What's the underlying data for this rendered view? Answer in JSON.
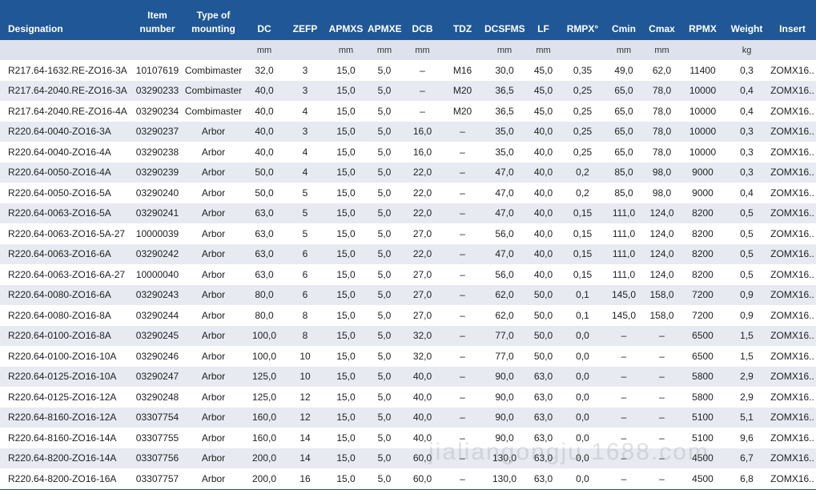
{
  "table": {
    "columns": [
      {
        "name": "Designation"
      },
      {
        "name": "Item number"
      },
      {
        "name": "Type of mounting"
      },
      {
        "name": "DC",
        "unit": "mm"
      },
      {
        "name": "ZEFP"
      },
      {
        "name": "APMXS",
        "unit": "mm"
      },
      {
        "name": "APMXE",
        "unit": "mm"
      },
      {
        "name": "DCB",
        "unit": "mm"
      },
      {
        "name": "TDZ"
      },
      {
        "name": "DCSFMS",
        "unit": "mm"
      },
      {
        "name": "LF",
        "unit": "mm"
      },
      {
        "name": "RMPX°"
      },
      {
        "name": "Cmin",
        "unit": "mm"
      },
      {
        "name": "Cmax",
        "unit": "mm"
      },
      {
        "name": "RPMX"
      },
      {
        "name": "Weight",
        "unit": "kg"
      },
      {
        "name": "Insert"
      }
    ],
    "rows": [
      [
        "R217.64-1632.RE-ZO16-3A",
        "10107619",
        "Combimaster",
        "32,0",
        "3",
        "15,0",
        "5,0",
        "–",
        "M16",
        "30,0",
        "45,0",
        "0,35",
        "49,0",
        "62,0",
        "11400",
        "0,3",
        "ZOMX16.."
      ],
      [
        "R217.64-2040.RE-ZO16-3A",
        "03290233",
        "Combimaster",
        "40,0",
        "3",
        "15,0",
        "5,0",
        "–",
        "M20",
        "36,5",
        "45,0",
        "0,25",
        "65,0",
        "78,0",
        "10000",
        "0,4",
        "ZOMX16.."
      ],
      [
        "R217.64-2040.RE-ZO16-4A",
        "03290234",
        "Combimaster",
        "40,0",
        "4",
        "15,0",
        "5,0",
        "–",
        "M20",
        "36,5",
        "45,0",
        "0,25",
        "65,0",
        "78,0",
        "10000",
        "0,4",
        "ZOMX16.."
      ],
      [
        "R220.64-0040-ZO16-3A",
        "03290237",
        "Arbor",
        "40,0",
        "3",
        "15,0",
        "5,0",
        "16,0",
        "–",
        "35,0",
        "40,0",
        "0,25",
        "65,0",
        "78,0",
        "10000",
        "0,3",
        "ZOMX16.."
      ],
      [
        "R220.64-0040-ZO16-4A",
        "03290238",
        "Arbor",
        "40,0",
        "4",
        "15,0",
        "5,0",
        "16,0",
        "–",
        "35,0",
        "40,0",
        "0,25",
        "65,0",
        "78,0",
        "10000",
        "0,3",
        "ZOMX16.."
      ],
      [
        "R220.64-0050-ZO16-4A",
        "03290239",
        "Arbor",
        "50,0",
        "4",
        "15,0",
        "5,0",
        "22,0",
        "–",
        "47,0",
        "40,0",
        "0,2",
        "85,0",
        "98,0",
        "9000",
        "0,3",
        "ZOMX16.."
      ],
      [
        "R220.64-0050-ZO16-5A",
        "03290240",
        "Arbor",
        "50,0",
        "5",
        "15,0",
        "5,0",
        "22,0",
        "–",
        "47,0",
        "40,0",
        "0,2",
        "85,0",
        "98,0",
        "9000",
        "0,4",
        "ZOMX16.."
      ],
      [
        "R220.64-0063-ZO16-5A",
        "03290241",
        "Arbor",
        "63,0",
        "5",
        "15,0",
        "5,0",
        "22,0",
        "–",
        "47,0",
        "40,0",
        "0,15",
        "111,0",
        "124,0",
        "8200",
        "0,5",
        "ZOMX16.."
      ],
      [
        "R220.64-0063-ZO16-5A-27",
        "10000039",
        "Arbor",
        "63,0",
        "5",
        "15,0",
        "5,0",
        "27,0",
        "–",
        "56,0",
        "40,0",
        "0,15",
        "111,0",
        "124,0",
        "8200",
        "0,5",
        "ZOMX16.."
      ],
      [
        "R220.64-0063-ZO16-6A",
        "03290242",
        "Arbor",
        "63,0",
        "6",
        "15,0",
        "5,0",
        "22,0",
        "–",
        "47,0",
        "40,0",
        "0,15",
        "111,0",
        "124,0",
        "8200",
        "0,5",
        "ZOMX16.."
      ],
      [
        "R220.64-0063-ZO16-6A-27",
        "10000040",
        "Arbor",
        "63,0",
        "6",
        "15,0",
        "5,0",
        "27,0",
        "–",
        "56,0",
        "40,0",
        "0,15",
        "111,0",
        "124,0",
        "8200",
        "0,5",
        "ZOMX16.."
      ],
      [
        "R220.64-0080-ZO16-6A",
        "03290243",
        "Arbor",
        "80,0",
        "6",
        "15,0",
        "5,0",
        "27,0",
        "–",
        "62,0",
        "50,0",
        "0,1",
        "145,0",
        "158,0",
        "7200",
        "0,9",
        "ZOMX16.."
      ],
      [
        "R220.64-0080-ZO16-8A",
        "03290244",
        "Arbor",
        "80,0",
        "8",
        "15,0",
        "5,0",
        "27,0",
        "–",
        "62,0",
        "50,0",
        "0,1",
        "145,0",
        "158,0",
        "7200",
        "0,9",
        "ZOMX16.."
      ],
      [
        "R220.64-0100-ZO16-8A",
        "03290245",
        "Arbor",
        "100,0",
        "8",
        "15,0",
        "5,0",
        "32,0",
        "–",
        "77,0",
        "50,0",
        "0,0",
        "–",
        "–",
        "6500",
        "1,5",
        "ZOMX16.."
      ],
      [
        "R220.64-0100-ZO16-10A",
        "03290246",
        "Arbor",
        "100,0",
        "10",
        "15,0",
        "5,0",
        "32,0",
        "–",
        "77,0",
        "50,0",
        "0,0",
        "–",
        "–",
        "6500",
        "1,5",
        "ZOMX16.."
      ],
      [
        "R220.64-0125-ZO16-10A",
        "03290247",
        "Arbor",
        "125,0",
        "10",
        "15,0",
        "5,0",
        "40,0",
        "–",
        "90,0",
        "63,0",
        "0,0",
        "–",
        "–",
        "5800",
        "2,9",
        "ZOMX16.."
      ],
      [
        "R220.64-0125-ZO16-12A",
        "03290248",
        "Arbor",
        "125,0",
        "12",
        "15,0",
        "5,0",
        "40,0",
        "–",
        "90,0",
        "63,0",
        "0,0",
        "–",
        "–",
        "5800",
        "2,9",
        "ZOMX16.."
      ],
      [
        "R220.64-8160-ZO16-12A",
        "03307754",
        "Arbor",
        "160,0",
        "12",
        "15,0",
        "5,0",
        "40,0",
        "–",
        "90,0",
        "63,0",
        "0,0",
        "–",
        "–",
        "5100",
        "5,1",
        "ZOMX16.."
      ],
      [
        "R220.64-8160-ZO16-14A",
        "03307755",
        "Arbor",
        "160,0",
        "14",
        "15,0",
        "5,0",
        "40,0",
        "–",
        "90,0",
        "63,0",
        "0,0",
        "–",
        "–",
        "5100",
        "9,6",
        "ZOMX16.."
      ],
      [
        "R220.64-8200-ZO16-14A",
        "03307756",
        "Arbor",
        "200,0",
        "14",
        "15,0",
        "5,0",
        "60,0",
        "–",
        "130,0",
        "63,0",
        "0,0",
        "–",
        "–",
        "4500",
        "6,7",
        "ZOMX16.."
      ],
      [
        "R220.64-8200-ZO16-16A",
        "03307757",
        "Arbor",
        "200,0",
        "16",
        "15,0",
        "5,0",
        "60,0",
        "–",
        "130,0",
        "63,0",
        "0,0",
        "–",
        "–",
        "4500",
        "6,8",
        "ZOMX16.."
      ]
    ]
  },
  "watermark": "jialiangongju.1688.com"
}
